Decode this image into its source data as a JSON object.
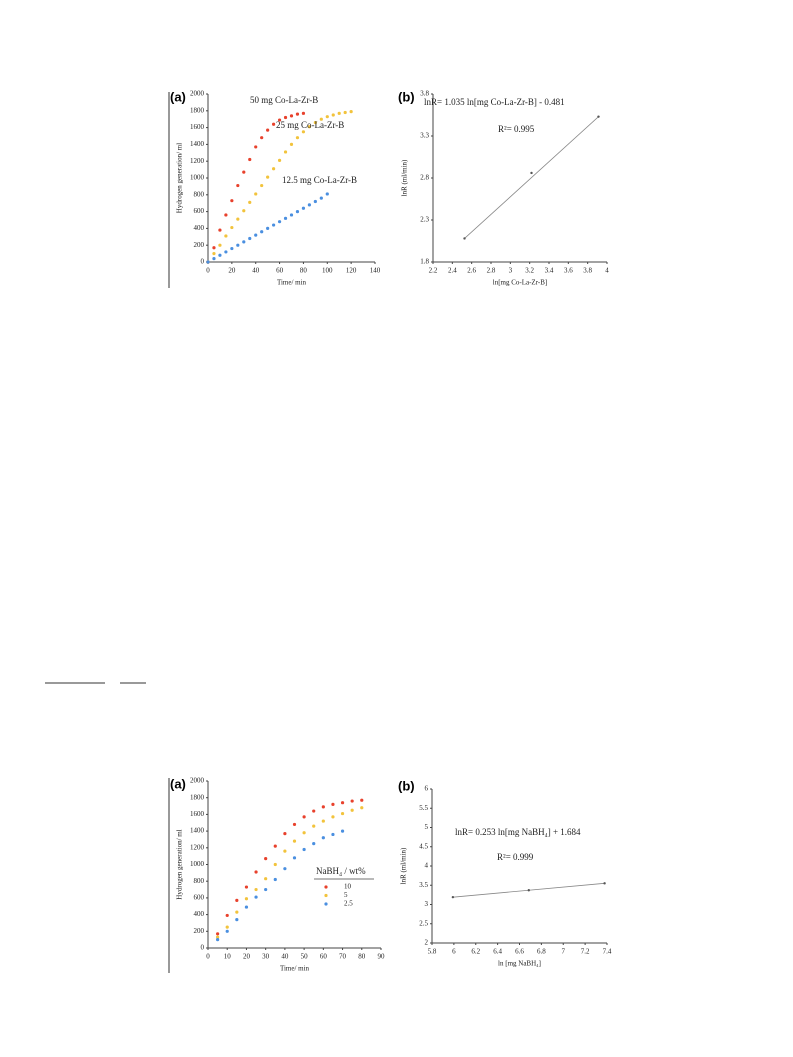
{
  "chart_data": [
    {
      "type": "scatter",
      "panel": "(a)",
      "xlabel": "Time/ min",
      "ylabel": "Hydrogen generation/ ml",
      "xlim": [
        0,
        140
      ],
      "xticks": [
        0,
        20,
        40,
        60,
        80,
        100,
        120,
        140
      ],
      "ylim": [
        0,
        2000
      ],
      "yticks": [
        0,
        200,
        400,
        600,
        800,
        1000,
        1200,
        1400,
        1600,
        1800,
        2000
      ],
      "legend": "inline",
      "series": [
        {
          "name": "50 mg Co-La-Zr-B",
          "color": "#e8412c",
          "x": [
            0,
            5,
            10,
            15,
            20,
            25,
            30,
            35,
            40,
            45,
            50,
            55,
            60,
            65,
            70,
            75,
            80
          ],
          "values": [
            0,
            170,
            380,
            560,
            730,
            910,
            1070,
            1220,
            1370,
            1480,
            1570,
            1640,
            1690,
            1720,
            1740,
            1760,
            1770
          ]
        },
        {
          "name": "25 mg Co-La-Zr-B",
          "color": "#f2c33c",
          "x": [
            0,
            5,
            10,
            15,
            20,
            25,
            30,
            35,
            40,
            45,
            50,
            55,
            60,
            65,
            70,
            75,
            80,
            85,
            90,
            95,
            100,
            105,
            110,
            115,
            120
          ],
          "values": [
            0,
            100,
            200,
            310,
            410,
            510,
            610,
            710,
            810,
            910,
            1010,
            1110,
            1210,
            1310,
            1400,
            1480,
            1550,
            1610,
            1660,
            1700,
            1730,
            1750,
            1770,
            1780,
            1790
          ]
        },
        {
          "name": "12.5 mg Co-La-Zr-B",
          "color": "#4a8fe0",
          "x": [
            0,
            5,
            10,
            15,
            20,
            25,
            30,
            35,
            40,
            45,
            50,
            55,
            60,
            65,
            70,
            75,
            80,
            85,
            90,
            95,
            100
          ],
          "values": [
            0,
            40,
            80,
            120,
            160,
            200,
            240,
            280,
            320,
            360,
            400,
            440,
            480,
            520,
            560,
            600,
            640,
            680,
            720,
            760,
            810
          ]
        }
      ]
    },
    {
      "type": "scatter",
      "panel": "(b)",
      "xlabel": "ln[mg Co-La-Zr-B]",
      "ylabel": "lnR (ml/min)",
      "xlim": [
        2.2,
        4
      ],
      "xticks": [
        2.2,
        2.4,
        2.6,
        2.8,
        3,
        3.2,
        3.4,
        3.6,
        3.8,
        4
      ],
      "ylim": [
        1.8,
        3.8
      ],
      "yticks": [
        1.8,
        2.3,
        2.8,
        3.3,
        3.8
      ],
      "trendline": true,
      "annotations": [
        "lnR= 1.035 ln[mg Co-La-Zr-B] - 0.481",
        "R²= 0.995"
      ],
      "series": [
        {
          "color": "#555555",
          "x": [
            2.526,
            3.219,
            3.912
          ],
          "values": [
            2.08,
            2.86,
            3.53
          ]
        }
      ]
    },
    {
      "type": "scatter",
      "panel": "(a)",
      "xlabel": "Time/ min",
      "ylabel": "Hydrogen generation/ ml",
      "xlim": [
        0,
        90
      ],
      "xticks": [
        0,
        10,
        20,
        30,
        40,
        50,
        60,
        70,
        80,
        90
      ],
      "ylim": [
        0,
        2000
      ],
      "yticks": [
        0,
        200,
        400,
        600,
        800,
        1000,
        1200,
        1400,
        1600,
        1800,
        2000
      ],
      "legend": "right",
      "legend_title": "NaBH₄ / wt%",
      "series": [
        {
          "name": "10",
          "color": "#e8412c",
          "x": [
            5,
            10,
            15,
            20,
            25,
            30,
            35,
            40,
            45,
            50,
            55,
            60,
            65,
            70,
            75,
            80
          ],
          "values": [
            170,
            390,
            570,
            730,
            910,
            1070,
            1220,
            1370,
            1480,
            1570,
            1640,
            1690,
            1720,
            1740,
            1760,
            1770
          ]
        },
        {
          "name": "5",
          "color": "#f2c33c",
          "x": [
            5,
            10,
            15,
            20,
            25,
            30,
            35,
            40,
            45,
            50,
            55,
            60,
            65,
            70,
            75,
            80
          ],
          "values": [
            130,
            250,
            430,
            590,
            700,
            830,
            1000,
            1160,
            1280,
            1380,
            1460,
            1520,
            1570,
            1610,
            1650,
            1680
          ]
        },
        {
          "name": "2.5",
          "color": "#4a8fe0",
          "x": [
            5,
            10,
            15,
            20,
            25,
            30,
            35,
            40,
            45,
            50,
            55,
            60,
            65,
            70
          ],
          "values": [
            100,
            200,
            340,
            490,
            610,
            700,
            820,
            950,
            1080,
            1180,
            1250,
            1320,
            1360,
            1400
          ]
        }
      ]
    },
    {
      "type": "scatter",
      "panel": "(b)",
      "xlabel": "ln [mg NaBH₄]",
      "ylabel": "lnR (ml/min)",
      "xlim": [
        5.8,
        7.4
      ],
      "xticks": [
        5.8,
        6,
        6.2,
        6.4,
        6.6,
        6.8,
        7,
        7.2,
        7.4
      ],
      "ylim": [
        2,
        6
      ],
      "yticks": [
        2,
        2.5,
        3,
        3.5,
        4,
        4.5,
        5,
        5.5,
        6
      ],
      "trendline": true,
      "annotations": [
        "lnR= 0.253 ln[mg NaBH₄] + 1.684",
        "R²= 0.999"
      ],
      "series": [
        {
          "color": "#555555",
          "x": [
            5.991,
            6.685,
            7.378
          ],
          "values": [
            3.19,
            3.37,
            3.55
          ]
        }
      ]
    }
  ]
}
